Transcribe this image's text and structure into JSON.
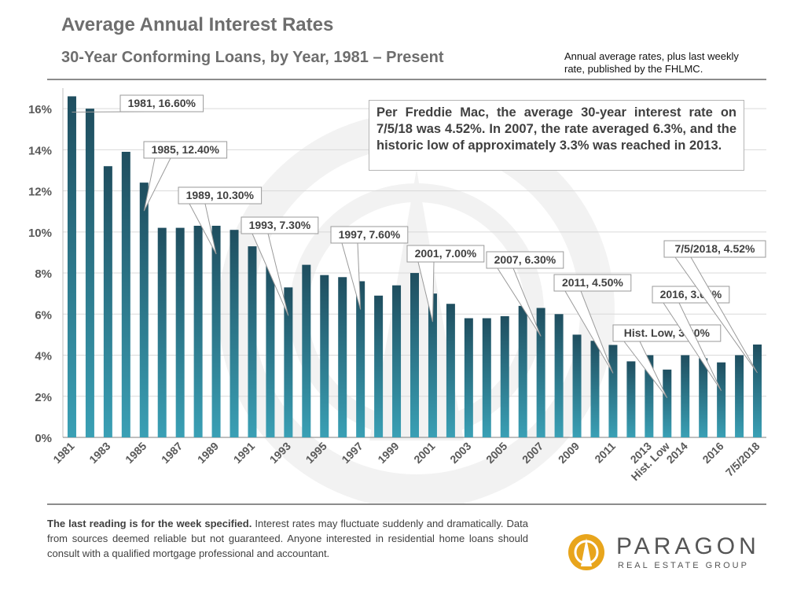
{
  "header": {
    "title": "Average Annual Interest Rates",
    "subtitle": "30-Year Conforming Loans, by Year, 1981 – Present",
    "source_note": "Annual average rates, plus last weekly rate, published by the FHLMC."
  },
  "callout": {
    "text": "Per Freddie Mac, the average 30-year interest rate on 7/5/18 was 4.52%. In 2007, the rate averaged 6.3%, and the historic low of approximately 3.3% was reached in 2013."
  },
  "footer": {
    "disclaimer_bold": "The last reading is for the week specified.",
    "disclaimer_text": " Interest rates may fluctuate suddenly and dramatically. Data from sources deemed reliable but not guaranteed. Anyone interested in residential home loans should consult with a qualified mortgage professional and accountant."
  },
  "logo": {
    "name": "PARAGON",
    "tagline": "REAL ESTATE GROUP",
    "colors": {
      "sun": "#e8a51c",
      "text": "#555555"
    }
  },
  "colors": {
    "bar_top": "#1f4e5f",
    "bar_bottom": "#3aa0b5",
    "grid": "#d9d9d9",
    "axis_text": "#595959"
  },
  "chart_data": {
    "type": "bar",
    "categories": [
      "1981",
      "1982",
      "1983",
      "1984",
      "1985",
      "1986",
      "1987",
      "1988",
      "1989",
      "1990",
      "1991",
      "1992",
      "1993",
      "1994",
      "1995",
      "1996",
      "1997",
      "1998",
      "1999",
      "2000",
      "2001",
      "2002",
      "2003",
      "2004",
      "2005",
      "2006",
      "2007",
      "2008",
      "2009",
      "2010",
      "2011",
      "2012",
      "2013",
      "Hist. Low",
      "2014",
      "2015",
      "2016",
      "2017",
      "7/5/2018"
    ],
    "tick_labels": [
      "1981",
      "",
      "1983",
      "",
      "1985",
      "",
      "1987",
      "",
      "1989",
      "",
      "1991",
      "",
      "1993",
      "",
      "1995",
      "",
      "1997",
      "",
      "1999",
      "",
      "2001",
      "",
      "2003",
      "",
      "2005",
      "",
      "2007",
      "",
      "2009",
      "",
      "2011",
      "",
      "2013",
      "Hist. Low",
      "2014",
      "",
      "2016",
      "",
      "7/5/2018"
    ],
    "values": [
      16.6,
      16.0,
      13.2,
      13.9,
      12.4,
      10.2,
      10.2,
      10.3,
      10.3,
      10.1,
      9.3,
      8.4,
      7.3,
      8.4,
      7.9,
      7.8,
      7.6,
      6.9,
      7.4,
      8.0,
      7.0,
      6.5,
      5.8,
      5.8,
      5.9,
      6.4,
      6.3,
      6.0,
      5.0,
      4.7,
      4.5,
      3.7,
      4.0,
      3.3,
      4.0,
      3.85,
      3.65,
      4.0,
      4.52
    ],
    "ylim": [
      0,
      17
    ],
    "yticks": [
      0,
      2,
      4,
      6,
      8,
      10,
      12,
      14,
      16
    ],
    "ytick_labels": [
      "0%",
      "2%",
      "4%",
      "6%",
      "8%",
      "10%",
      "12%",
      "14%",
      "16%"
    ],
    "grid": true,
    "annotations": [
      {
        "label": "1981, 16.60%",
        "bar": 0
      },
      {
        "label": "1985, 12.40%",
        "bar": 4
      },
      {
        "label": "1989, 10.30%",
        "bar": 8
      },
      {
        "label": "1993, 7.30%",
        "bar": 12
      },
      {
        "label": "1997, 7.60%",
        "bar": 16
      },
      {
        "label": "2001, 7.00%",
        "bar": 20
      },
      {
        "label": "2007, 6.30%",
        "bar": 26
      },
      {
        "label": "2011, 4.50%",
        "bar": 30
      },
      {
        "label": "Hist. Low, 3.30%",
        "bar": 33
      },
      {
        "label": "2016, 3.65%",
        "bar": 36
      },
      {
        "label": "7/5/2018, 4.52%",
        "bar": 38
      }
    ]
  }
}
